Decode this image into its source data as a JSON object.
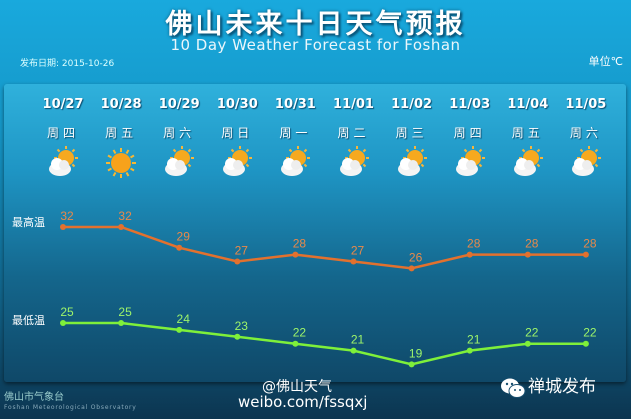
{
  "header": {
    "title": "佛山未来十日天气预报",
    "subtitle": "10 Day Weather Forecast for Foshan",
    "issue_date": "发布日期: 2015-10-26",
    "unit": "单位℃"
  },
  "days": [
    {
      "date": "10/27",
      "weekday": "周四",
      "icon": "partly-cloudy-icon"
    },
    {
      "date": "10/28",
      "weekday": "周五",
      "icon": "sunny-icon"
    },
    {
      "date": "10/29",
      "weekday": "周六",
      "icon": "partly-cloudy-icon"
    },
    {
      "date": "10/30",
      "weekday": "周日",
      "icon": "partly-cloudy-icon"
    },
    {
      "date": "10/31",
      "weekday": "周一",
      "icon": "partly-cloudy-icon"
    },
    {
      "date": "11/01",
      "weekday": "周二",
      "icon": "partly-cloudy-icon"
    },
    {
      "date": "11/02",
      "weekday": "周三",
      "icon": "partly-cloudy-icon"
    },
    {
      "date": "11/03",
      "weekday": "周四",
      "icon": "partly-cloudy-icon"
    },
    {
      "date": "11/04",
      "weekday": "周五",
      "icon": "partly-cloudy-icon"
    },
    {
      "date": "11/05",
      "weekday": "周六",
      "icon": "partly-cloudy-icon"
    }
  ],
  "chart_data": {
    "type": "line",
    "categories": [
      "10/27",
      "10/28",
      "10/29",
      "10/30",
      "10/31",
      "11/01",
      "11/02",
      "11/03",
      "11/04",
      "11/05"
    ],
    "series": [
      {
        "name": "最高温",
        "values": [
          32,
          32,
          29,
          27,
          28,
          27,
          26,
          28,
          28,
          28
        ],
        "color": "#e2712e"
      },
      {
        "name": "最低温",
        "values": [
          25,
          25,
          24,
          23,
          22,
          21,
          19,
          21,
          22,
          22
        ],
        "color": "#7ef03a"
      }
    ]
  },
  "footer": {
    "observatory_cn": "佛山市气象台",
    "observatory_en": "Foshan Meteorological Observatory",
    "weibo_handle": "@佛山天气",
    "weibo_url": "weibo.com/fssqxj",
    "wechat": "禅城发布"
  }
}
